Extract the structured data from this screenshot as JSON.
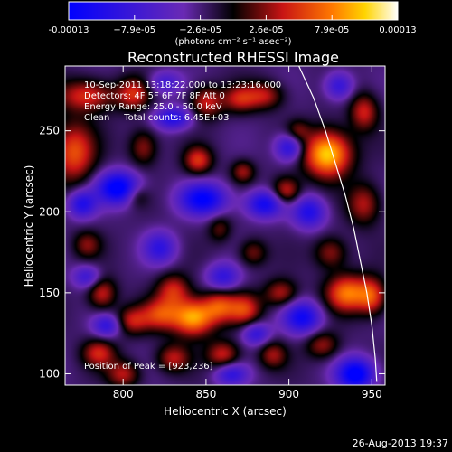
{
  "chart_data": {
    "type": "heatmap",
    "title": "Reconstructed RHESSI Image",
    "xlabel": "Heliocentric X (arcsec)",
    "ylabel": "Heliocentric Y (arcsec)",
    "xlim": [
      765,
      958
    ],
    "ylim": [
      93,
      290
    ],
    "x_ticks": [
      800,
      850,
      900,
      950
    ],
    "y_ticks": [
      100,
      150,
      200,
      250
    ],
    "colorbar": {
      "ticks": [
        "-0.00013",
        "−7.9e-05",
        "−2.6e-05",
        "2.6e-05",
        "7.9e-05",
        "0.00013"
      ],
      "unit_label": "(photons cm⁻² s⁻¹ asec⁻²)",
      "range": [
        -0.00013,
        0.00013
      ]
    },
    "annotations": [
      "10-Sep-2011 13:18:22.000 to 13:23:16.000",
      "Detectors: 4F 5F 6F 7F 8F  Att 0",
      "Energy Range: 25.0 - 50.0 keV",
      "Clean     Total counts: 6.45E+03"
    ],
    "peak_label": "Position of Peak = [923,236]",
    "peak": [
      923,
      236
    ],
    "sources": [
      {
        "x": 923,
        "y": 236,
        "sx": 10,
        "sy": 10,
        "a": 1.0
      },
      {
        "x": 770,
        "y": 237,
        "sx": 9,
        "sy": 13,
        "a": 0.65
      },
      {
        "x": 778,
        "y": 272,
        "sx": 12,
        "sy": 7,
        "a": 0.55
      },
      {
        "x": 806,
        "y": 273,
        "sx": 7,
        "sy": 7,
        "a": 0.5
      },
      {
        "x": 812,
        "y": 240,
        "sx": 6,
        "sy": 8,
        "a": 0.4
      },
      {
        "x": 850,
        "y": 268,
        "sx": 7,
        "sy": 7,
        "a": 0.5
      },
      {
        "x": 870,
        "y": 270,
        "sx": 7,
        "sy": 6,
        "a": 0.45
      },
      {
        "x": 885,
        "y": 272,
        "sx": 8,
        "sy": 6,
        "a": 0.45
      },
      {
        "x": 845,
        "y": 232,
        "sx": 6,
        "sy": 6,
        "a": 0.55
      },
      {
        "x": 872,
        "y": 225,
        "sx": 5,
        "sy": 5,
        "a": 0.4
      },
      {
        "x": 898,
        "y": 213,
        "sx": 6,
        "sy": 6,
        "a": 0.55
      },
      {
        "x": 945,
        "y": 262,
        "sx": 6,
        "sy": 8,
        "a": 0.5
      },
      {
        "x": 945,
        "y": 205,
        "sx": 7,
        "sy": 9,
        "a": 0.45
      },
      {
        "x": 925,
        "y": 175,
        "sx": 7,
        "sy": 7,
        "a": 0.4
      },
      {
        "x": 935,
        "y": 150,
        "sx": 9,
        "sy": 8,
        "a": 0.75
      },
      {
        "x": 950,
        "y": 148,
        "sx": 6,
        "sy": 8,
        "a": 0.55
      },
      {
        "x": 878,
        "y": 175,
        "sx": 6,
        "sy": 6,
        "a": 0.35
      },
      {
        "x": 895,
        "y": 150,
        "sx": 7,
        "sy": 6,
        "a": 0.45
      },
      {
        "x": 858,
        "y": 142,
        "sx": 7,
        "sy": 7,
        "a": 0.55
      },
      {
        "x": 873,
        "y": 140,
        "sx": 7,
        "sy": 7,
        "a": 0.55
      },
      {
        "x": 830,
        "y": 152,
        "sx": 7,
        "sy": 7,
        "a": 0.5
      },
      {
        "x": 787,
        "y": 150,
        "sx": 6,
        "sy": 7,
        "a": 0.5
      },
      {
        "x": 822,
        "y": 137,
        "sx": 8,
        "sy": 7,
        "a": 0.55
      },
      {
        "x": 842,
        "y": 135,
        "sx": 9,
        "sy": 8,
        "a": 0.9
      },
      {
        "x": 805,
        "y": 133,
        "sx": 7,
        "sy": 6,
        "a": 0.45
      },
      {
        "x": 785,
        "y": 113,
        "sx": 7,
        "sy": 6,
        "a": 0.5
      },
      {
        "x": 800,
        "y": 100,
        "sx": 7,
        "sy": 6,
        "a": 0.45
      },
      {
        "x": 830,
        "y": 110,
        "sx": 7,
        "sy": 6,
        "a": 0.45
      },
      {
        "x": 860,
        "y": 112,
        "sx": 7,
        "sy": 6,
        "a": 0.5
      },
      {
        "x": 890,
        "y": 112,
        "sx": 6,
        "sy": 6,
        "a": 0.4
      },
      {
        "x": 920,
        "y": 118,
        "sx": 7,
        "sy": 6,
        "a": 0.4
      },
      {
        "x": 778,
        "y": 180,
        "sx": 6,
        "sy": 6,
        "a": 0.35
      },
      {
        "x": 808,
        "y": 210,
        "sx": 5,
        "sy": 5,
        "a": 0.3
      },
      {
        "x": 858,
        "y": 190,
        "sx": 5,
        "sy": 6,
        "a": 0.3
      },
      {
        "x": 905,
        "y": 250,
        "sx": 5,
        "sy": 5,
        "a": 0.3
      },
      {
        "x": 797,
        "y": 215,
        "sx": 9,
        "sy": 7,
        "a": -0.9
      },
      {
        "x": 775,
        "y": 205,
        "sx": 6,
        "sy": 6,
        "a": -0.6
      },
      {
        "x": 848,
        "y": 208,
        "sx": 10,
        "sy": 7,
        "a": -0.8
      },
      {
        "x": 885,
        "y": 205,
        "sx": 8,
        "sy": 6,
        "a": -0.7
      },
      {
        "x": 912,
        "y": 200,
        "sx": 7,
        "sy": 7,
        "a": -0.6
      },
      {
        "x": 900,
        "y": 240,
        "sx": 6,
        "sy": 6,
        "a": -0.6
      },
      {
        "x": 830,
        "y": 258,
        "sx": 8,
        "sy": 5,
        "a": -0.6
      },
      {
        "x": 940,
        "y": 100,
        "sx": 8,
        "sy": 7,
        "a": -0.9
      },
      {
        "x": 908,
        "y": 135,
        "sx": 8,
        "sy": 7,
        "a": -0.7
      },
      {
        "x": 880,
        "y": 125,
        "sx": 6,
        "sy": 5,
        "a": -0.5
      },
      {
        "x": 790,
        "y": 130,
        "sx": 6,
        "sy": 5,
        "a": -0.5
      },
      {
        "x": 822,
        "y": 178,
        "sx": 7,
        "sy": 7,
        "a": -0.5
      },
      {
        "x": 860,
        "y": 160,
        "sx": 7,
        "sy": 6,
        "a": -0.5
      },
      {
        "x": 825,
        "y": 280,
        "sx": 7,
        "sy": 5,
        "a": -0.4
      },
      {
        "x": 930,
        "y": 278,
        "sx": 6,
        "sy": 6,
        "a": -0.5
      },
      {
        "x": 865,
        "y": 100,
        "sx": 7,
        "sy": 5,
        "a": -0.5
      },
      {
        "x": 778,
        "y": 160,
        "sx": 6,
        "sy": 5,
        "a": -0.45
      }
    ],
    "limb_points": [
      [
        906,
        290
      ],
      [
        915,
        270
      ],
      [
        922,
        250
      ],
      [
        928,
        230
      ],
      [
        934,
        210
      ],
      [
        939,
        190
      ],
      [
        943,
        170
      ],
      [
        947,
        150
      ],
      [
        950,
        130
      ],
      [
        952,
        110
      ],
      [
        953,
        95
      ]
    ]
  },
  "footer": {
    "date": "26-Aug-2013 19:37"
  }
}
